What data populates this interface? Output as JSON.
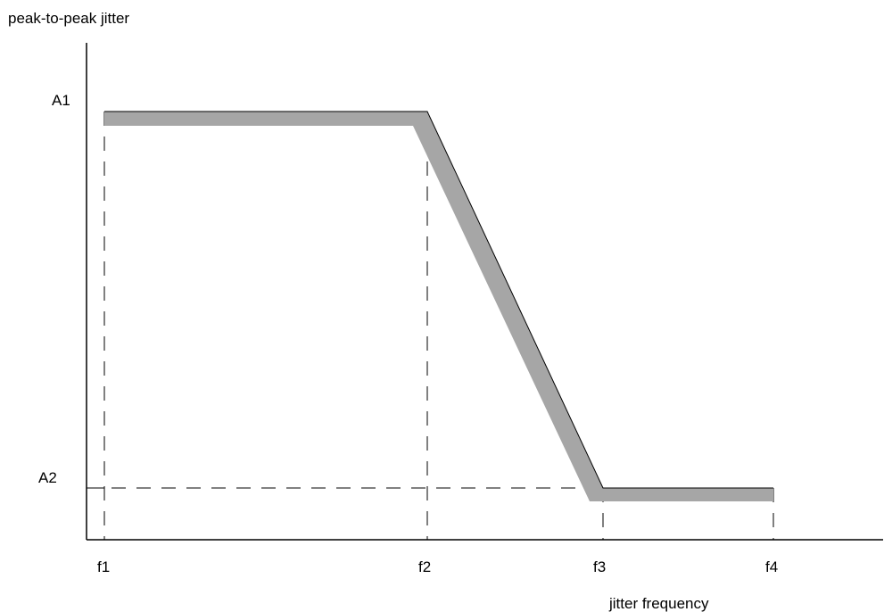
{
  "chart_data": {
    "type": "line",
    "ylabel": "peak-to-peak jitter",
    "xlabel": "jitter frequency",
    "x_ticks": [
      "f1",
      "f2",
      "f3",
      "f4"
    ],
    "y_ticks": [
      "A1",
      "A2"
    ],
    "series": [
      {
        "points": [
          [
            "f1",
            "A1"
          ],
          [
            "f2",
            "A1"
          ],
          [
            "f3",
            "A2"
          ],
          [
            "f4",
            "A2"
          ]
        ]
      }
    ],
    "reference_lines": [
      {
        "orientation": "vertical",
        "at": "f1"
      },
      {
        "orientation": "vertical",
        "at": "f2"
      },
      {
        "orientation": "vertical",
        "at": "f3"
      },
      {
        "orientation": "vertical",
        "at": "f4"
      },
      {
        "orientation": "horizontal",
        "at": "A2"
      }
    ],
    "colors": {
      "band": "#a6a6a6",
      "axis": "#000000"
    },
    "grid": false
  }
}
